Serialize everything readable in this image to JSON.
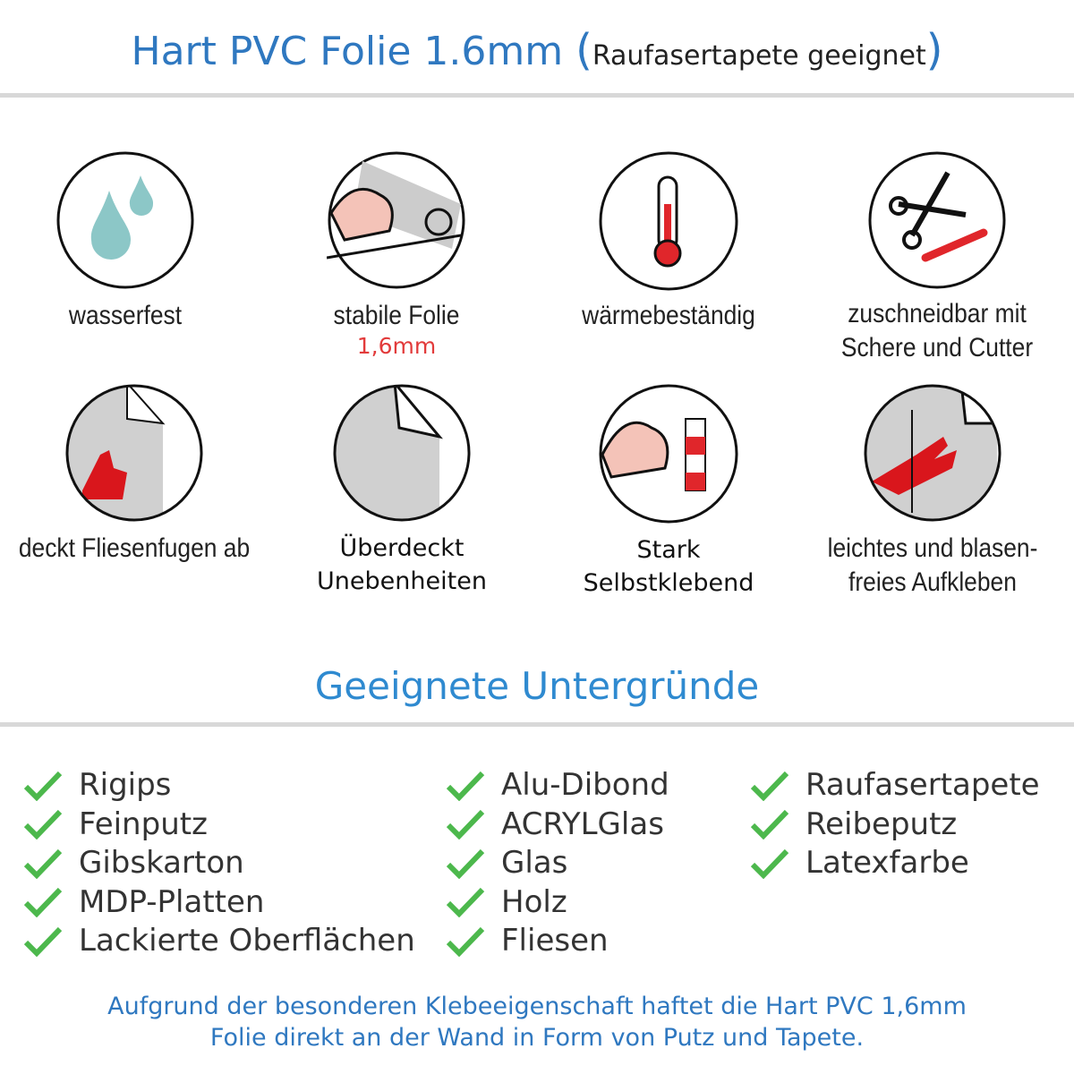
{
  "header": {
    "title_main": "Hart PVC Folie 1.6mm",
    "paren_open": "(",
    "title_sub": "Raufasertapete geeignet",
    "paren_close": ")"
  },
  "features": [
    {
      "icon": "water-drops-icon",
      "label": "wasserfest"
    },
    {
      "icon": "strong-arm-foil-icon",
      "label": "stabile Folie",
      "sub": "1,6mm"
    },
    {
      "icon": "thermometer-icon",
      "label": "wärmebeständig"
    },
    {
      "icon": "scissors-cutter-icon",
      "label": "zuschneidbar mit",
      "label2": "Schere und Cutter"
    },
    {
      "icon": "thumbs-up-tiles-icon",
      "label": "deckt Fliesenfugen ab"
    },
    {
      "icon": "foil-corner-icon",
      "label": "Überdeckt",
      "label2": "Unebenheiten"
    },
    {
      "icon": "strong-arm-glue-icon",
      "label": "Stark",
      "label2": "Selbstklebend"
    },
    {
      "icon": "hand-smoothing-icon",
      "label": "leichtes und blasen-",
      "label2": "freies Aufkleben"
    }
  ],
  "section_title": "Geeignete Untergründe",
  "surfaces": {
    "col1": [
      "Rigips",
      "Feinputz",
      "Gibskarton",
      "MDP-Platten",
      "Lackierte Oberflächen"
    ],
    "col2": [
      "Alu-Dibond",
      "ACRYLGlas",
      "Glas",
      "Holz",
      "Fliesen"
    ],
    "col3": [
      "Raufasertapete",
      "Reibeputz",
      "Latexfarbe"
    ]
  },
  "footer": {
    "line1": "Aufgrund der besonderen Klebeeigenschaft haftet die Hart PVC 1,6mm",
    "line2": "Folie direkt an der Wand in Form von Putz und Tapete."
  },
  "colors": {
    "title_blue": "#2f78c0",
    "check_green": "#4cb84c",
    "accent_red": "#e23b3b"
  }
}
